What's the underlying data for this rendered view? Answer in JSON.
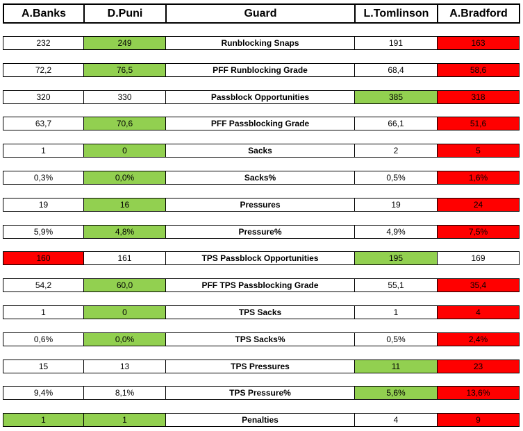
{
  "table": {
    "header": [
      "A.Banks",
      "D.Puni",
      "Guard",
      "L.Tomlinson",
      "A.Bradford"
    ],
    "colors": {
      "green": "#92d050",
      "red": "#ff0000"
    },
    "rows": [
      {
        "cells": [
          "232",
          "249",
          "Runblocking Snaps",
          "191",
          "163"
        ],
        "fills": [
          null,
          "green",
          null,
          null,
          "red"
        ]
      },
      {
        "cells": [
          "72,2",
          "76,5",
          "PFF Runblocking Grade",
          "68,4",
          "58,6"
        ],
        "fills": [
          null,
          "green",
          null,
          null,
          "red"
        ]
      },
      {
        "cells": [
          "320",
          "330",
          "Passblock Opportunities",
          "385",
          "318"
        ],
        "fills": [
          null,
          null,
          null,
          "green",
          "red"
        ]
      },
      {
        "cells": [
          "63,7",
          "70,6",
          "PFF Passblocking Grade",
          "66,1",
          "51,6"
        ],
        "fills": [
          null,
          "green",
          null,
          null,
          "red"
        ]
      },
      {
        "cells": [
          "1",
          "0",
          "Sacks",
          "2",
          "5"
        ],
        "fills": [
          null,
          "green",
          null,
          null,
          "red"
        ]
      },
      {
        "cells": [
          "0,3%",
          "0,0%",
          "Sacks%",
          "0,5%",
          "1,6%"
        ],
        "fills": [
          null,
          "green",
          null,
          null,
          "red"
        ]
      },
      {
        "cells": [
          "19",
          "16",
          "Pressures",
          "19",
          "24"
        ],
        "fills": [
          null,
          "green",
          null,
          null,
          "red"
        ]
      },
      {
        "cells": [
          "5,9%",
          "4,8%",
          "Pressure%",
          "4,9%",
          "7,5%"
        ],
        "fills": [
          null,
          "green",
          null,
          null,
          "red"
        ]
      },
      {
        "cells": [
          "160",
          "161",
          "TPS Passblock Opportunities",
          "195",
          "169"
        ],
        "fills": [
          "red",
          null,
          null,
          "green",
          null
        ]
      },
      {
        "cells": [
          "54,2",
          "60,0",
          "PFF TPS Passblocking Grade",
          "55,1",
          "35,4"
        ],
        "fills": [
          null,
          "green",
          null,
          null,
          "red"
        ]
      },
      {
        "cells": [
          "1",
          "0",
          "TPS Sacks",
          "1",
          "4"
        ],
        "fills": [
          null,
          "green",
          null,
          null,
          "red"
        ]
      },
      {
        "cells": [
          "0,6%",
          "0,0%",
          "TPS Sacks%",
          "0,5%",
          "2,4%"
        ],
        "fills": [
          null,
          "green",
          null,
          null,
          "red"
        ]
      },
      {
        "cells": [
          "15",
          "13",
          "TPS Pressures",
          "11",
          "23"
        ],
        "fills": [
          null,
          null,
          null,
          "green",
          "red"
        ]
      },
      {
        "cells": [
          "9,4%",
          "8,1%",
          "TPS Pressure%",
          "5,6%",
          "13,6%"
        ],
        "fills": [
          null,
          null,
          null,
          "green",
          "red"
        ]
      },
      {
        "cells": [
          "1",
          "1",
          "Penalties",
          "4",
          "9"
        ],
        "fills": [
          "green",
          "green",
          null,
          null,
          "red"
        ]
      }
    ]
  }
}
